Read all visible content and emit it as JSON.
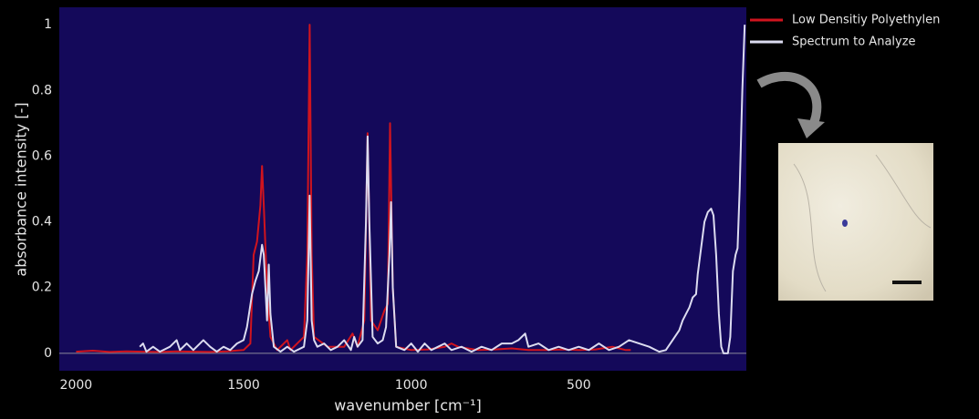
{
  "chart_data": {
    "type": "line",
    "xlabel": "wavenumber [cm⁻¹]",
    "ylabel": "absorbance intensity [-]",
    "xlim": [
      2050,
      0
    ],
    "ylim": [
      -0.053,
      1.053
    ],
    "xticks": [
      2000,
      1500,
      1000,
      500
    ],
    "yticks": [
      0,
      0.2,
      0.4,
      0.6,
      0.8,
      1
    ],
    "zeroline": true,
    "series": [
      {
        "name": "Low Densitiy Polyethylen",
        "color": "#d0141e",
        "x": [
          2000,
          1950,
          1900,
          1850,
          1800,
          1750,
          1700,
          1650,
          1600,
          1550,
          1500,
          1480,
          1470,
          1460,
          1450,
          1445,
          1440,
          1430,
          1420,
          1400,
          1370,
          1360,
          1320,
          1310,
          1303,
          1297,
          1290,
          1250,
          1200,
          1175,
          1160,
          1140,
          1130,
          1120,
          1100,
          1080,
          1070,
          1063,
          1055,
          1045,
          1000,
          950,
          900,
          880,
          860,
          800,
          750,
          700,
          650,
          600,
          550,
          500,
          450,
          400,
          360,
          345
        ],
        "values": [
          0.005,
          0.008,
          0.004,
          0.006,
          0.005,
          0.004,
          0.006,
          0.005,
          0.004,
          0.006,
          0.01,
          0.03,
          0.3,
          0.34,
          0.45,
          0.57,
          0.45,
          0.2,
          0.05,
          0.01,
          0.04,
          0.01,
          0.05,
          0.3,
          1.0,
          0.3,
          0.05,
          0.02,
          0.02,
          0.06,
          0.02,
          0.1,
          0.67,
          0.1,
          0.07,
          0.13,
          0.15,
          0.7,
          0.2,
          0.02,
          0.01,
          0.012,
          0.02,
          0.03,
          0.02,
          0.01,
          0.012,
          0.015,
          0.01,
          0.01,
          0.012,
          0.01,
          0.012,
          0.02,
          0.01,
          0.01
        ]
      },
      {
        "name": "Spectrum to Analyze",
        "color": "#dcdcf0",
        "x": [
          1810,
          1800,
          1790,
          1770,
          1750,
          1720,
          1700,
          1690,
          1670,
          1650,
          1620,
          1600,
          1580,
          1560,
          1540,
          1520,
          1500,
          1490,
          1475,
          1465,
          1455,
          1445,
          1440,
          1435,
          1430,
          1425,
          1420,
          1410,
          1390,
          1370,
          1350,
          1320,
          1310,
          1303,
          1297,
          1290,
          1280,
          1260,
          1240,
          1220,
          1200,
          1180,
          1170,
          1160,
          1145,
          1135,
          1130,
          1125,
          1115,
          1100,
          1085,
          1075,
          1065,
          1060,
          1055,
          1045,
          1020,
          1000,
          980,
          960,
          940,
          920,
          900,
          880,
          850,
          820,
          790,
          760,
          730,
          700,
          680,
          660,
          650,
          620,
          590,
          560,
          530,
          500,
          470,
          440,
          410,
          380,
          350,
          320,
          290,
          260,
          240,
          220,
          200,
          190,
          180,
          170,
          160,
          150,
          145,
          135,
          125,
          115,
          105,
          98,
          90,
          82,
          75,
          68,
          55,
          48,
          40,
          32,
          26,
          20,
          12,
          5
        ],
        "values": [
          0.02,
          0.03,
          0.005,
          0.02,
          0.005,
          0.02,
          0.04,
          0.01,
          0.03,
          0.01,
          0.04,
          0.02,
          0.005,
          0.02,
          0.01,
          0.03,
          0.04,
          0.08,
          0.18,
          0.22,
          0.25,
          0.33,
          0.3,
          0.2,
          0.1,
          0.27,
          0.12,
          0.02,
          0.005,
          0.02,
          0.005,
          0.02,
          0.1,
          0.48,
          0.1,
          0.04,
          0.02,
          0.03,
          0.01,
          0.02,
          0.04,
          0.01,
          0.05,
          0.02,
          0.04,
          0.4,
          0.66,
          0.4,
          0.05,
          0.03,
          0.04,
          0.08,
          0.3,
          0.46,
          0.2,
          0.02,
          0.01,
          0.03,
          0.005,
          0.03,
          0.01,
          0.02,
          0.03,
          0.01,
          0.02,
          0.005,
          0.02,
          0.01,
          0.03,
          0.03,
          0.04,
          0.06,
          0.02,
          0.03,
          0.01,
          0.02,
          0.01,
          0.02,
          0.01,
          0.03,
          0.01,
          0.02,
          0.04,
          0.03,
          0.02,
          0.005,
          0.01,
          0.04,
          0.07,
          0.1,
          0.12,
          0.14,
          0.17,
          0.18,
          0.24,
          0.32,
          0.4,
          0.43,
          0.44,
          0.42,
          0.3,
          0.12,
          0.02,
          0.0,
          0.0,
          0.05,
          0.25,
          0.3,
          0.32,
          0.5,
          0.8,
          1.0
        ]
      }
    ]
  }
}
